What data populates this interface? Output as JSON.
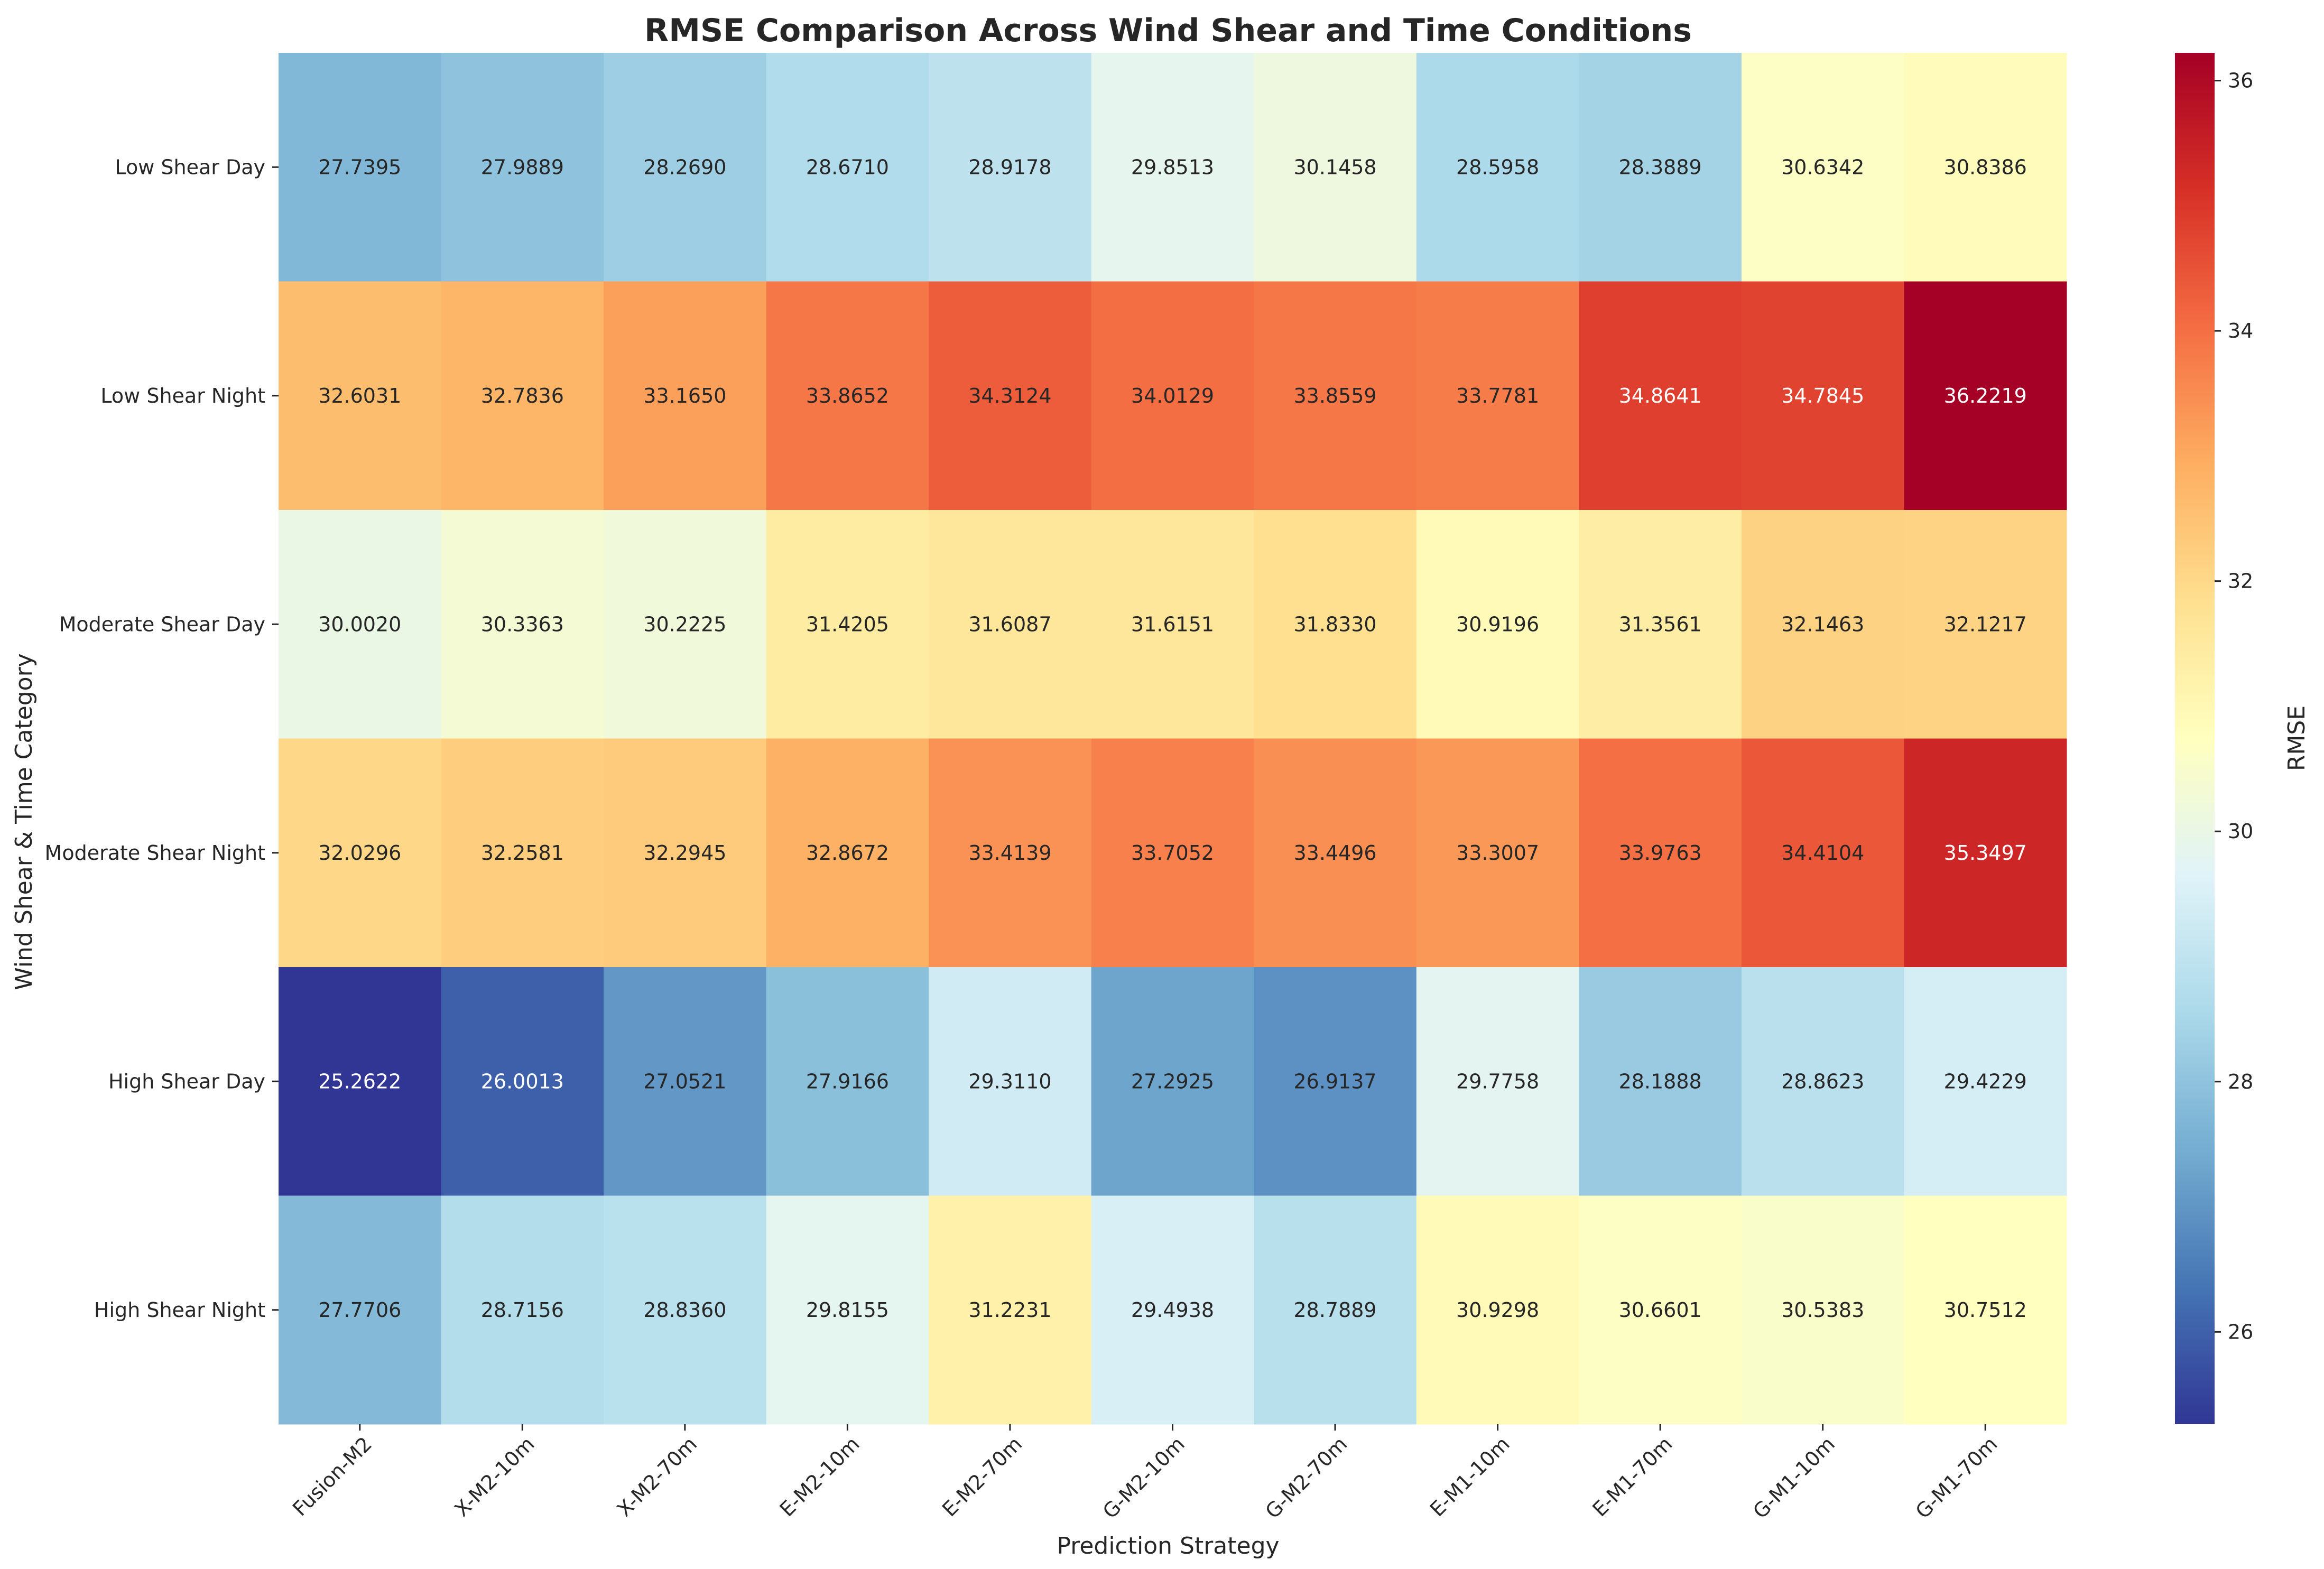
{
  "chart_data": {
    "type": "heatmap",
    "title": "RMSE Comparison Across Wind Shear and Time Conditions",
    "xlabel": "Prediction Strategy",
    "ylabel": "Wind Shear & Time Category",
    "colorbar_label": "RMSE",
    "colormap": "RdYlBu_r",
    "colorbar_ticks": [
      "26",
      "28",
      "30",
      "32",
      "34",
      "36"
    ],
    "colorbar_range": [
      25.2622,
      36.2219
    ],
    "columns": [
      "Fusion-M2",
      "X-M2-10m",
      "X-M2-70m",
      "E-M2-10m",
      "E-M2-70m",
      "G-M2-10m",
      "G-M2-70m",
      "E-M1-10m",
      "E-M1-70m",
      "G-M1-10m",
      "G-M1-70m"
    ],
    "rows": [
      "Low Shear Day",
      "Low Shear Night",
      "Moderate Shear Day",
      "Moderate Shear Night",
      "High Shear Day",
      "High Shear Night"
    ],
    "values": [
      [
        27.7395,
        27.9889,
        28.269,
        28.671,
        28.9178,
        29.8513,
        30.1458,
        28.5958,
        28.3889,
        30.6342,
        30.8386
      ],
      [
        32.6031,
        32.7836,
        33.165,
        33.8652,
        34.3124,
        34.0129,
        33.8559,
        33.7781,
        34.8641,
        34.7845,
        36.2219
      ],
      [
        30.002,
        30.3363,
        30.2225,
        31.4205,
        31.6087,
        31.6151,
        31.833,
        30.9196,
        31.3561,
        32.1463,
        32.1217
      ],
      [
        32.0296,
        32.2581,
        32.2945,
        32.8672,
        33.4139,
        33.7052,
        33.4496,
        33.3007,
        33.9763,
        34.4104,
        35.3497
      ],
      [
        25.2622,
        26.0013,
        27.0521,
        27.9166,
        29.311,
        27.2925,
        26.9137,
        29.7758,
        28.1888,
        28.8623,
        29.4229
      ],
      [
        27.7706,
        28.7156,
        28.836,
        29.8155,
        31.2231,
        29.4938,
        28.7889,
        30.9298,
        30.6601,
        30.5383,
        30.7512
      ]
    ],
    "value_format": "4 decimals"
  }
}
